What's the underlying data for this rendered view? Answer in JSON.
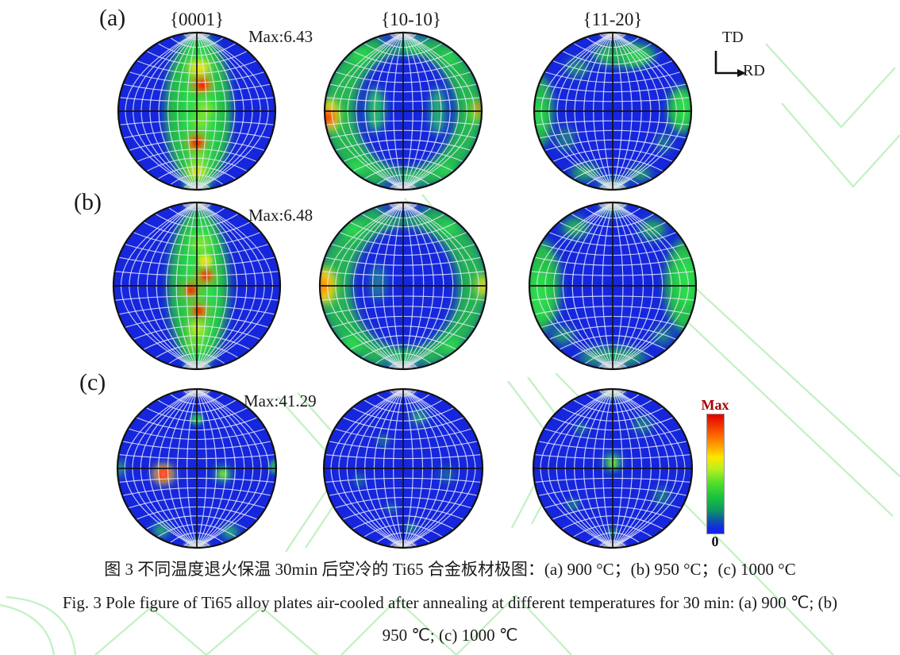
{
  "figure": {
    "panel_labels": [
      "(a)",
      "(b)",
      "(c)"
    ],
    "column_headers": [
      "{0001}",
      "{10-10}",
      "{11-20}"
    ],
    "max_labels": [
      "Max:6.43",
      "Max:6.48",
      "Max:41.29"
    ],
    "axis_indicator": {
      "vertical": "TD",
      "horizontal": "RD"
    },
    "colorbar": {
      "top_label": "Max",
      "bottom_label": "0"
    }
  },
  "captions": {
    "zh": "图 3  不同温度退火保温 30min 后空冷的 Ti65 合金板材极图：(a) 900 °C；(b) 950 °C；(c) 1000 °C",
    "en_line1": "Fig. 3 Pole figure of Ti65 alloy plates air-cooled after annealing at different temperatures for 30 min: (a) 900  ℃; (b)",
    "en_line2": "950  ℃; (c) 1000  ℃"
  },
  "chart_data": {
    "type": "heatmap",
    "subtype": "pole-figure-grid",
    "title": "Pole figures of Ti65 alloy plates after annealing",
    "columns": [
      "{0001}",
      "{10-10}",
      "{11-20}"
    ],
    "rows": [
      {
        "label": "(a)",
        "condition": "900 °C",
        "max_intensity": 6.43
      },
      {
        "label": "(b)",
        "condition": "950 °C",
        "max_intensity": 6.48
      },
      {
        "label": "(c)",
        "condition": "1000 °C",
        "max_intensity": 41.29
      }
    ],
    "colorbar": {
      "min": 0,
      "min_label": "0",
      "max_label": "Max",
      "gradient": [
        "#e10000",
        "#ff9000",
        "#ffe600",
        "#4ede2a",
        "#0d9a60",
        "#1226e8"
      ]
    },
    "grid": {
      "meridian_step_deg": 10,
      "parallel_step_deg": 10
    },
    "palette": {
      "bg": "#1626dd",
      "green": "#27c840",
      "green2": "#2de04e",
      "yellowgreen": "#9ae62c",
      "yellow": "#ffe81c",
      "orange": "#ff7a00",
      "red": "#f51f05",
      "white": "#ffffff",
      "cap": "#dedede",
      "grid": "#e2e8f7",
      "cross": "#141414",
      "boundary": "#111111",
      "watermark": "#b8eebb"
    },
    "figures": [
      {
        "id": "a-0001",
        "panel": "(a)",
        "pole": "{0001}",
        "hotspots": [
          [
            0.02,
            0.0,
            0.42,
            0.98,
            "green",
            0.95
          ],
          [
            0.03,
            0.03,
            0.22,
            0.86,
            "green2",
            0.85
          ],
          [
            0.03,
            -0.55,
            0.14,
            0.12,
            "yellow",
            0.9
          ],
          [
            0.06,
            -0.34,
            0.13,
            0.11,
            "orange",
            0.95
          ],
          [
            0.07,
            -0.33,
            0.06,
            0.06,
            "red",
            0.9
          ],
          [
            0.1,
            -0.02,
            0.12,
            0.1,
            "yellowgreen",
            0.9
          ],
          [
            0.05,
            0.15,
            0.1,
            0.09,
            "yellowgreen",
            0.8
          ],
          [
            0.0,
            0.4,
            0.12,
            0.11,
            "orange",
            0.95
          ],
          [
            0.0,
            0.4,
            0.06,
            0.06,
            "red",
            0.9
          ],
          [
            0.02,
            0.6,
            0.1,
            0.08,
            "yellowgreen",
            0.85
          ],
          [
            0.0,
            0.78,
            0.12,
            0.1,
            "yellow",
            0.9
          ],
          [
            0.0,
            0.95,
            0.15,
            0.08,
            "green2",
            0.8
          ],
          [
            0.0,
            -0.8,
            0.14,
            0.1,
            "green2",
            0.6
          ]
        ]
      },
      {
        "id": "a-10-10",
        "panel": "(a)",
        "pole": "{10-10}",
        "hotspots": [
          [
            0.0,
            0.0,
            1.02,
            1.02,
            "green",
            0.9
          ],
          [
            0.03,
            0.0,
            0.64,
            0.74,
            "bg",
            1
          ],
          [
            0.0,
            -0.93,
            0.32,
            0.13,
            "bg",
            0.85
          ],
          [
            0.0,
            0.94,
            0.28,
            0.11,
            "bg",
            0.8
          ],
          [
            -0.93,
            0.05,
            0.12,
            0.2,
            "yellow",
            0.95
          ],
          [
            -0.96,
            0.08,
            0.08,
            0.1,
            "red",
            0.95
          ],
          [
            0.95,
            -0.02,
            0.06,
            0.09,
            "red",
            0.8
          ],
          [
            0.93,
            0.0,
            0.09,
            0.15,
            "yellowgreen",
            0.8
          ],
          [
            -0.35,
            -0.02,
            0.12,
            0.28,
            "green2",
            0.8
          ],
          [
            0.44,
            0.0,
            0.1,
            0.3,
            "green2",
            0.75
          ],
          [
            0.12,
            -0.84,
            0.18,
            0.1,
            "green2",
            0.8
          ],
          [
            -0.55,
            -0.72,
            0.14,
            0.1,
            "green2",
            0.7
          ],
          [
            0.6,
            -0.7,
            0.12,
            0.1,
            "green2",
            0.6
          ],
          [
            -0.6,
            0.72,
            0.14,
            0.1,
            "green2",
            0.8
          ],
          [
            0.1,
            0.88,
            0.16,
            0.09,
            "green2",
            0.8
          ],
          [
            0.55,
            0.76,
            0.12,
            0.09,
            "green2",
            0.7
          ]
        ]
      },
      {
        "id": "a-11-20",
        "panel": "(a)",
        "pole": "{11-20}",
        "hotspots": [
          [
            -0.92,
            0.0,
            0.16,
            0.45,
            "green",
            0.9
          ],
          [
            -0.95,
            0.05,
            0.08,
            0.2,
            "green2",
            0.8
          ],
          [
            0.88,
            -0.02,
            0.18,
            0.3,
            "green",
            0.95
          ],
          [
            0.9,
            -0.05,
            0.1,
            0.18,
            "green2",
            0.9
          ],
          [
            0.15,
            -0.72,
            0.4,
            0.16,
            "green",
            0.85
          ],
          [
            0.3,
            -0.68,
            0.15,
            0.1,
            "green2",
            0.7
          ],
          [
            -0.45,
            -0.55,
            0.15,
            0.12,
            "green",
            0.6
          ],
          [
            -0.35,
            0.78,
            0.18,
            0.1,
            "green",
            0.8
          ],
          [
            0.35,
            0.8,
            0.15,
            0.09,
            "green",
            0.7
          ],
          [
            0.0,
            0.93,
            0.2,
            0.08,
            "green2",
            0.6
          ],
          [
            -0.6,
            0.35,
            0.12,
            0.15,
            "green",
            0.5
          ],
          [
            0.65,
            0.4,
            0.1,
            0.12,
            "green",
            0.5
          ]
        ]
      },
      {
        "id": "b-0001",
        "panel": "(b)",
        "pole": "{0001}",
        "hotspots": [
          [
            0.02,
            0.02,
            0.36,
            0.96,
            "green",
            0.95
          ],
          [
            0.04,
            0.0,
            0.2,
            0.8,
            "green2",
            0.9
          ],
          [
            0.05,
            -0.5,
            0.11,
            0.1,
            "yellowgreen",
            0.9
          ],
          [
            0.1,
            -0.3,
            0.09,
            0.08,
            "yellow",
            0.85
          ],
          [
            0.1,
            -0.12,
            0.11,
            0.09,
            "orange",
            0.95
          ],
          [
            0.11,
            -0.12,
            0.05,
            0.05,
            "red",
            0.95
          ],
          [
            -0.07,
            0.05,
            0.1,
            0.09,
            "orange",
            0.9
          ],
          [
            -0.07,
            0.05,
            0.05,
            0.05,
            "red",
            0.9
          ],
          [
            0.03,
            0.3,
            0.1,
            0.1,
            "orange",
            0.9
          ],
          [
            0.02,
            0.3,
            0.05,
            0.05,
            "red",
            0.85
          ],
          [
            0.0,
            0.52,
            0.1,
            0.09,
            "yellow",
            0.85
          ],
          [
            -0.02,
            0.7,
            0.1,
            0.08,
            "yellowgreen",
            0.8
          ],
          [
            0.0,
            0.88,
            0.12,
            0.08,
            "green2",
            0.7
          ]
        ]
      },
      {
        "id": "b-10-10",
        "panel": "(b)",
        "pole": "{10-10}",
        "hotspots": [
          [
            0.0,
            0.0,
            1.02,
            1.02,
            "green",
            0.88
          ],
          [
            0.02,
            0.02,
            0.64,
            0.74,
            "bg",
            1
          ],
          [
            0.0,
            -0.94,
            0.3,
            0.12,
            "bg",
            0.85
          ],
          [
            0.0,
            0.95,
            0.26,
            0.1,
            "bg",
            0.8
          ],
          [
            -0.94,
            0.0,
            0.13,
            0.22,
            "yellow",
            0.95
          ],
          [
            -0.97,
            0.0,
            0.08,
            0.12,
            "orange",
            0.95
          ],
          [
            0.96,
            0.0,
            0.08,
            0.14,
            "yellow",
            0.9
          ],
          [
            -0.6,
            -0.68,
            0.13,
            0.1,
            "green2",
            0.8
          ],
          [
            0.55,
            -0.7,
            0.12,
            0.1,
            "green2",
            0.7
          ],
          [
            -0.62,
            0.7,
            0.13,
            0.1,
            "green2",
            0.85
          ],
          [
            0.58,
            0.72,
            0.12,
            0.1,
            "green2",
            0.8
          ],
          [
            0.0,
            0.88,
            0.2,
            0.09,
            "green2",
            0.75
          ],
          [
            -0.3,
            -0.04,
            0.1,
            0.22,
            "green2",
            0.45
          ]
        ]
      },
      {
        "id": "b-11-20",
        "panel": "(b)",
        "pole": "{11-20}",
        "hotspots": [
          [
            -0.85,
            0.0,
            0.22,
            0.55,
            "green",
            0.95
          ],
          [
            -0.88,
            0.1,
            0.12,
            0.3,
            "green2",
            0.9
          ],
          [
            0.85,
            0.0,
            0.22,
            0.55,
            "green",
            0.95
          ],
          [
            0.88,
            -0.05,
            0.12,
            0.3,
            "green2",
            0.85
          ],
          [
            -0.45,
            -0.7,
            0.16,
            0.12,
            "green",
            0.85
          ],
          [
            0.48,
            -0.68,
            0.16,
            0.12,
            "green",
            0.8
          ],
          [
            0.0,
            -0.92,
            0.15,
            0.08,
            "green2",
            0.6
          ],
          [
            0.0,
            0.85,
            0.4,
            0.12,
            "green",
            0.75
          ],
          [
            -0.6,
            0.6,
            0.14,
            0.1,
            "green",
            0.7
          ],
          [
            0.6,
            0.6,
            0.12,
            0.1,
            "green",
            0.6
          ]
        ]
      },
      {
        "id": "c-0001",
        "panel": "(c)",
        "pole": "{0001}",
        "hotspots": [
          [
            -0.42,
            0.07,
            0.13,
            0.12,
            "yellow",
            0.95
          ],
          [
            -0.42,
            0.07,
            0.08,
            0.075,
            "red",
            0.98
          ],
          [
            -0.42,
            0.07,
            0.025,
            0.025,
            "white",
            0.9
          ],
          [
            0.33,
            0.07,
            0.1,
            0.09,
            "green2",
            0.95
          ],
          [
            0.33,
            0.07,
            0.05,
            0.045,
            "yellowgreen",
            0.9
          ],
          [
            0.0,
            -0.62,
            0.08,
            0.07,
            "green2",
            0.9
          ],
          [
            -0.98,
            0.0,
            0.06,
            0.1,
            "green2",
            0.85
          ],
          [
            0.97,
            -0.02,
            0.05,
            0.09,
            "green2",
            0.8
          ],
          [
            -0.45,
            0.78,
            0.1,
            0.08,
            "green2",
            0.85
          ],
          [
            0.42,
            0.8,
            0.1,
            0.08,
            "green2",
            0.85
          ],
          [
            0.0,
            0.97,
            0.12,
            0.06,
            "green2",
            0.6
          ]
        ]
      },
      {
        "id": "c-10-10",
        "panel": "(c)",
        "pole": "{10-10}",
        "hotspots": [
          [
            0.2,
            -0.65,
            0.1,
            0.09,
            "green2",
            0.7
          ],
          [
            -0.25,
            -0.35,
            0.09,
            0.08,
            "green",
            0.35
          ],
          [
            0.55,
            0.08,
            0.09,
            0.1,
            "green",
            0.45
          ],
          [
            -0.55,
            0.15,
            0.08,
            0.09,
            "green",
            0.3
          ],
          [
            0.1,
            0.75,
            0.09,
            0.07,
            "green",
            0.4
          ],
          [
            -0.15,
            0.5,
            0.08,
            0.07,
            "green",
            0.3
          ]
        ]
      },
      {
        "id": "c-11-20",
        "panel": "(c)",
        "pole": "{11-20}",
        "hotspots": [
          [
            0.0,
            -0.08,
            0.1,
            0.11,
            "green2",
            0.95
          ],
          [
            0.0,
            -0.06,
            0.05,
            0.06,
            "yellowgreen",
            0.7
          ],
          [
            0.0,
            -0.96,
            0.12,
            0.07,
            "green2",
            0.85
          ],
          [
            0.38,
            -0.55,
            0.11,
            0.1,
            "green",
            0.6
          ],
          [
            -0.4,
            -0.5,
            0.09,
            0.08,
            "green",
            0.35
          ],
          [
            0.62,
            0.35,
            0.1,
            0.1,
            "green",
            0.55
          ],
          [
            -0.5,
            0.45,
            0.09,
            0.08,
            "green",
            0.4
          ],
          [
            0.0,
            0.8,
            0.08,
            0.07,
            "green",
            0.45
          ]
        ]
      }
    ]
  },
  "watermark": {
    "paths": [
      "M760,305 L1125,650",
      "M808,300 L1134,600",
      "M700,470 L1050,825",
      "M965,55 L1060,160 L1128,85",
      "M985,130 L1075,235 L1134,170",
      "M510,250 L575,330 L515,450",
      "M532,245 L597,325 L537,445",
      "M350,500 L430,590 L360,695",
      "M375,495 L455,585 L385,690",
      "M640,480 L700,560 L645,665",
      "M665,475 L725,555 L670,660",
      "M120,825 L190,765 L260,825 L330,765 L400,825",
      "M430,825 L500,755 L575,825 L650,750 L720,825",
      "M95,825 Q88,758 8,752",
      "M0,762 Q60,774 68,825"
    ]
  }
}
